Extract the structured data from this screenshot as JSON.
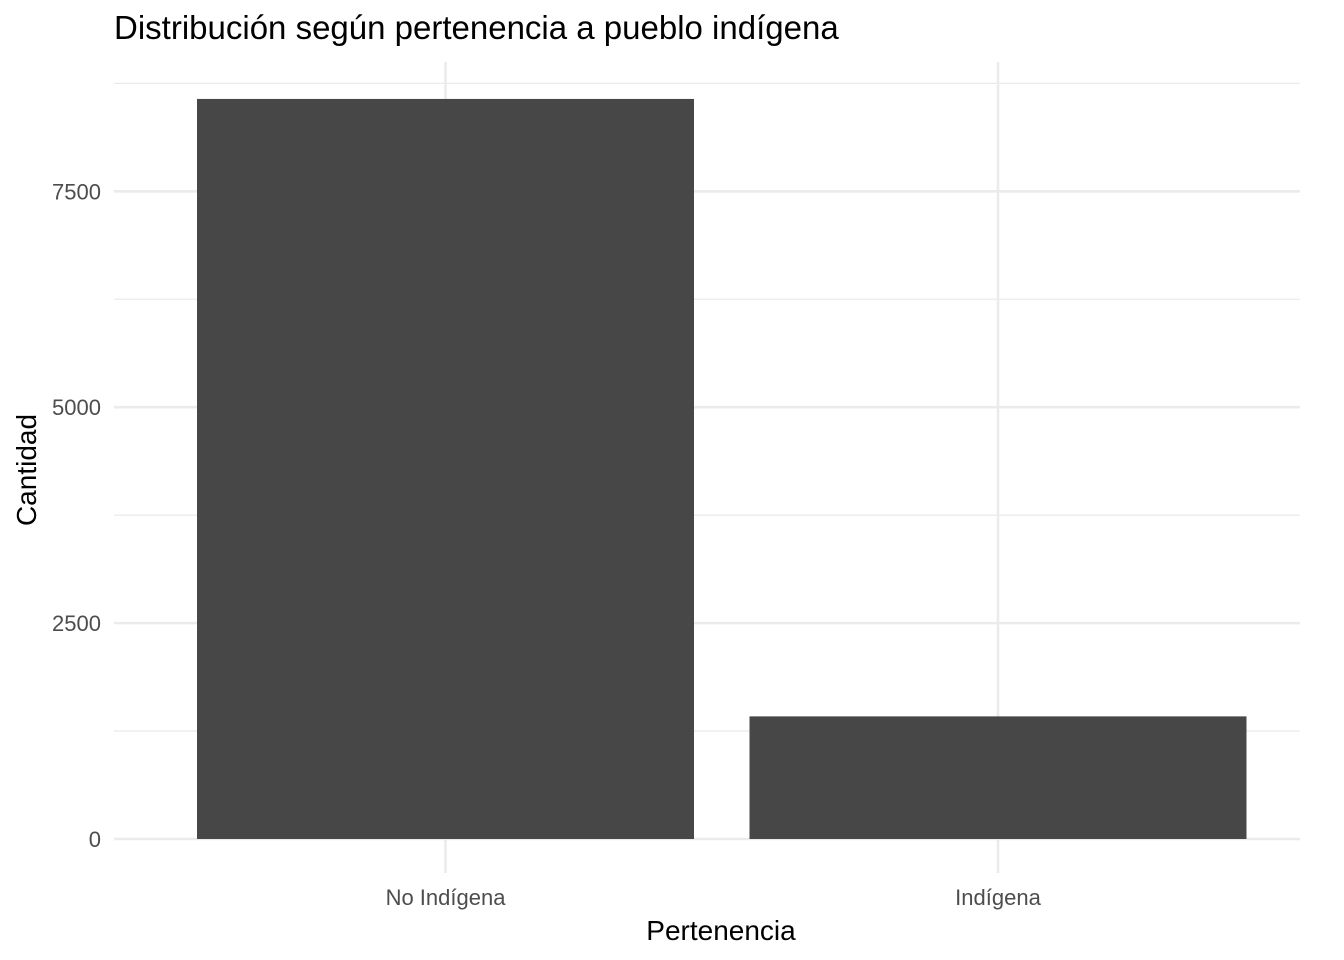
{
  "chart_data": {
    "type": "bar",
    "title": "Distribución según pertenencia a pueblo indígena",
    "xlabel": "Pertenencia",
    "ylabel": "Cantidad",
    "categories": [
      "No Indígena",
      "Indígena"
    ],
    "values": [
      8570,
      1420
    ],
    "ylim": [
      0,
      8750
    ],
    "yticks": [
      0,
      2500,
      5000,
      7500
    ],
    "yticks_minor": [
      1250,
      3750,
      6250,
      8750
    ],
    "grid": true,
    "legend": "none",
    "bar_color": "#474747",
    "grid_color": "#ebebeb"
  }
}
